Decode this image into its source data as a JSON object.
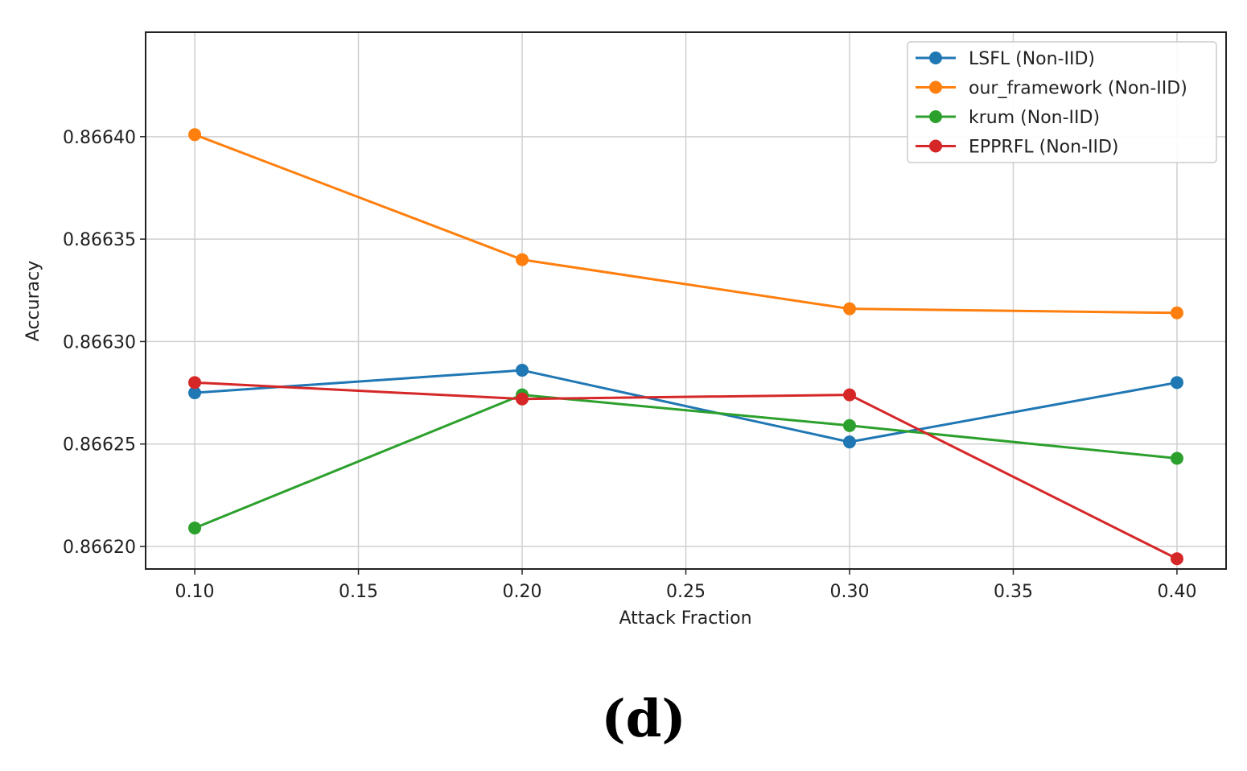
{
  "chart_data": {
    "type": "line",
    "xlabel": "Attack Fraction",
    "ylabel": "Accuracy",
    "x": [
      0.1,
      0.2,
      0.3,
      0.4
    ],
    "xlim": [
      0.085,
      0.415
    ],
    "ylim": [
      0.866189,
      0.866451
    ],
    "xticks": [
      "0.10",
      "0.15",
      "0.20",
      "0.25",
      "0.30",
      "0.35",
      "0.40"
    ],
    "yticks": [
      "0.86620",
      "0.86625",
      "0.86630",
      "0.86635",
      "0.86640"
    ],
    "grid": true,
    "legend_position": "top-right",
    "series": [
      {
        "name": "LSFL (Non-IID)",
        "color": "#1f77b4",
        "values": [
          0.866275,
          0.866286,
          0.866251,
          0.86628
        ]
      },
      {
        "name": "our_framework (Non-IID)",
        "color": "#ff7f0e",
        "values": [
          0.866401,
          0.86634,
          0.866316,
          0.866314
        ]
      },
      {
        "name": "krum (Non-IID)",
        "color": "#2ca02c",
        "values": [
          0.866209,
          0.866274,
          0.866259,
          0.866243
        ]
      },
      {
        "name": "EPPRFL (Non-IID)",
        "color": "#d62728",
        "values": [
          0.86628,
          0.866272,
          0.866274,
          0.866194
        ]
      }
    ]
  },
  "panel_label": "(d)"
}
